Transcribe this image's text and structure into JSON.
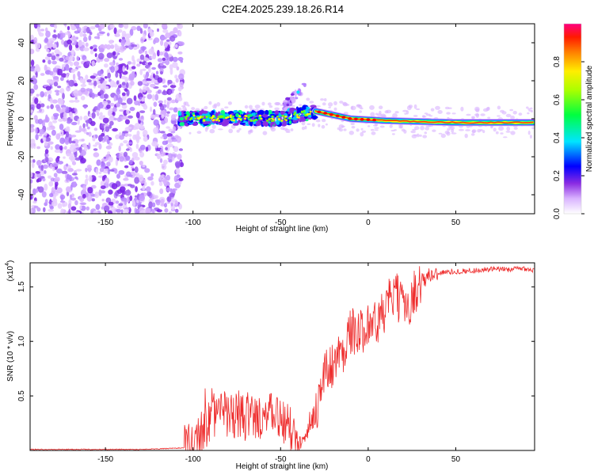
{
  "chart_data": [
    {
      "type": "heatmap",
      "title": "C2E4.2025.239.18.26.R14",
      "xlabel": "Height of straight line (km)",
      "ylabel": "Frequency (Hz)",
      "xlim": [
        -193,
        95
      ],
      "ylim": [
        -50,
        50
      ],
      "xticks": [
        -150,
        -100,
        -50,
        0,
        50
      ],
      "yticks": [
        -40,
        -20,
        0,
        20,
        40
      ],
      "colorbar": {
        "label": "Normalized spectral amplitude",
        "range": [
          0,
          1
        ],
        "ticks": [
          "0.0",
          "0.2",
          "0.4",
          "0.6",
          "0.8"
        ],
        "colors": [
          "#ffffff",
          "#9966ff",
          "#0000ff",
          "#00ffff",
          "#00ff00",
          "#ffff00",
          "#ff8000",
          "#ff0000",
          "#ff0080"
        ]
      },
      "regions": [
        {
          "name": "scattered noise",
          "x": [
            -193,
            -106
          ],
          "y": [
            -50,
            50
          ],
          "amplitude": 0.15
        },
        {
          "name": "signal band",
          "x": [
            -108,
            -30
          ],
          "y": [
            -4,
            4
          ],
          "amplitude": 0.35
        },
        {
          "name": "burst",
          "x": [
            -48,
            -36
          ],
          "y": [
            6,
            18
          ],
          "amplitude": 0.15
        },
        {
          "name": "strong band",
          "x": [
            -30,
            95
          ],
          "y": [
            -2,
            2
          ],
          "amplitude": 0.9
        }
      ],
      "band_center": [
        {
          "x": -108,
          "y": 0
        },
        {
          "x": -80,
          "y": 0.5
        },
        {
          "x": -50,
          "y": 0
        },
        {
          "x": -30,
          "y": 4
        },
        {
          "x": -10,
          "y": 0
        },
        {
          "x": 10,
          "y": -1
        },
        {
          "x": 50,
          "y": -2
        },
        {
          "x": 95,
          "y": -2
        }
      ]
    },
    {
      "type": "line",
      "xlabel": "Height of straight line (km)",
      "ylabel": "SNR (10 * v/v)",
      "y_scale_label": "(x10",
      "y_scale_exp": "4",
      "xlim": [
        -193,
        95
      ],
      "ylim": [
        0,
        1.7
      ],
      "xticks": [
        -150,
        -100,
        -50,
        0,
        50
      ],
      "yticks": [
        "0.5",
        "1.0",
        "1.5"
      ],
      "color": "#ee2a2a",
      "series": [
        {
          "name": "SNR",
          "x": [
            -193,
            -160,
            -130,
            -110,
            -100,
            -95,
            -90,
            -85,
            -80,
            -75,
            -70,
            -65,
            -60,
            -55,
            -50,
            -45,
            -40,
            -35,
            -30,
            -25,
            -20,
            -15,
            -10,
            -5,
            0,
            5,
            10,
            15,
            20,
            25,
            30,
            35,
            40,
            50,
            60,
            70,
            80,
            90,
            95
          ],
          "y": [
            0.01,
            0.01,
            0.01,
            0.02,
            0.03,
            0.15,
            0.3,
            0.35,
            0.32,
            0.3,
            0.3,
            0.3,
            0.32,
            0.3,
            0.32,
            0.2,
            0.1,
            0.2,
            0.35,
            0.7,
            0.8,
            0.9,
            1.1,
            1.05,
            1.2,
            1.15,
            1.3,
            1.45,
            1.3,
            1.4,
            1.55,
            1.6,
            1.63,
            1.64,
            1.65,
            1.66,
            1.66,
            1.67,
            1.65
          ]
        }
      ]
    }
  ]
}
